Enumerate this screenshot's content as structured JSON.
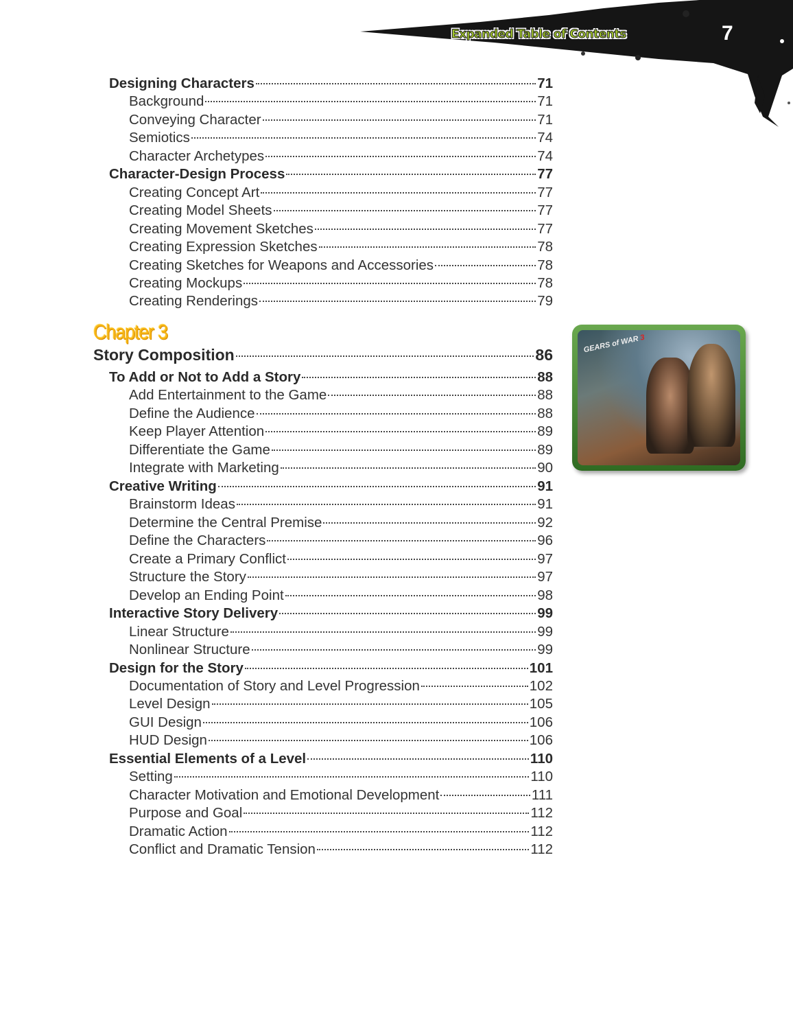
{
  "header": {
    "title": "Expanded Table of Contents",
    "page_number": "7"
  },
  "chapter_label": "Chapter 3",
  "image": {
    "logo_text": "GEARS of WAR",
    "logo_number": "3"
  },
  "entries": [
    {
      "level": 1,
      "title": "Designing Characters",
      "page": "71"
    },
    {
      "level": 2,
      "title": "Background",
      "page": "71"
    },
    {
      "level": 2,
      "title": "Conveying Character",
      "page": "71"
    },
    {
      "level": 2,
      "title": "Semiotics",
      "page": "74"
    },
    {
      "level": 2,
      "title": "Character Archetypes",
      "page": "74"
    },
    {
      "level": 1,
      "title": "Character-Design Process",
      "page": "77"
    },
    {
      "level": 2,
      "title": "Creating Concept Art",
      "page": "77"
    },
    {
      "level": 2,
      "title": "Creating Model Sheets",
      "page": "77"
    },
    {
      "level": 2,
      "title": "Creating Movement Sketches",
      "page": "77"
    },
    {
      "level": 2,
      "title": "Creating Expression Sketches",
      "page": "78"
    },
    {
      "level": 2,
      "title": "Creating Sketches for Weapons and Accessories",
      "page": "78"
    },
    {
      "level": 2,
      "title": "Creating Mockups",
      "page": "78"
    },
    {
      "level": 2,
      "title": "Creating Renderings",
      "page": "79"
    },
    {
      "level": 0,
      "title": "Story Composition",
      "page": "86"
    },
    {
      "level": 1,
      "title": "To Add or Not to Add a Story",
      "page": "88"
    },
    {
      "level": 2,
      "title": "Add Entertainment to the Game",
      "page": "88"
    },
    {
      "level": 2,
      "title": "Define the Audience",
      "page": "88"
    },
    {
      "level": 2,
      "title": "Keep Player Attention",
      "page": "89"
    },
    {
      "level": 2,
      "title": "Differentiate the Game",
      "page": "89"
    },
    {
      "level": 2,
      "title": "Integrate with Marketing",
      "page": "90"
    },
    {
      "level": 1,
      "title": "Creative Writing",
      "page": "91"
    },
    {
      "level": 2,
      "title": "Brainstorm Ideas",
      "page": "91"
    },
    {
      "level": 2,
      "title": "Determine the Central Premise",
      "page": "92"
    },
    {
      "level": 2,
      "title": "Define the Characters",
      "page": "96"
    },
    {
      "level": 2,
      "title": "Create a Primary Conflict",
      "page": "97"
    },
    {
      "level": 2,
      "title": "Structure the Story",
      "page": "97"
    },
    {
      "level": 2,
      "title": "Develop an Ending Point",
      "page": "98"
    },
    {
      "level": 1,
      "title": "Interactive Story Delivery",
      "page": "99"
    },
    {
      "level": 2,
      "title": "Linear Structure",
      "page": "99"
    },
    {
      "level": 2,
      "title": "Nonlinear Structure",
      "page": "99"
    },
    {
      "level": 1,
      "title": "Design for the Story",
      "page": "101"
    },
    {
      "level": 2,
      "title": "Documentation of Story and Level Progression",
      "page": "102"
    },
    {
      "level": 2,
      "title": "Level Design",
      "page": "105"
    },
    {
      "level": 2,
      "title": "GUI Design",
      "page": "106"
    },
    {
      "level": 2,
      "title": "HUD Design",
      "page": "106"
    },
    {
      "level": 1,
      "title": "Essential Elements of a Level",
      "page": "110"
    },
    {
      "level": 2,
      "title": "Setting",
      "page": "110"
    },
    {
      "level": 2,
      "title": "Character Motivation and Emotional Development",
      "page": "111"
    },
    {
      "level": 2,
      "title": "Purpose and Goal",
      "page": "112"
    },
    {
      "level": 2,
      "title": "Dramatic Action",
      "page": "112"
    },
    {
      "level": 2,
      "title": "Conflict and Dramatic Tension",
      "page": "112"
    }
  ]
}
